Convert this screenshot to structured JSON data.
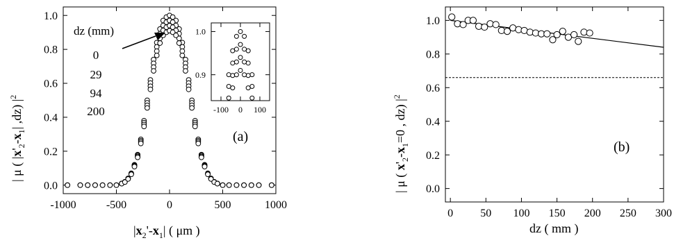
{
  "chart_data": [
    {
      "panel": "a",
      "type": "scatter",
      "panel_label": "(a)",
      "xlabel": "|x2'-x1|  (μm)",
      "ylabel": "|μ ( |x'2-x1|, dz) |²",
      "xlim": [
        -1000,
        1000
      ],
      "ylim": [
        -0.05,
        1.05
      ],
      "xticks": [
        -1000,
        -500,
        0,
        500,
        1000
      ],
      "yticks": [
        0.0,
        0.2,
        0.4,
        0.6,
        0.8,
        1.0
      ],
      "xtick_labels": [
        "-1000",
        "-500",
        "0",
        "500",
        "1000"
      ],
      "ytick_labels": [
        "0.0",
        "0.2",
        "0.4",
        "0.6",
        "0.8",
        "1.0"
      ],
      "marker": "open-circle",
      "legend": {
        "title": "dz (mm)",
        "entries": [
          "0",
          "29",
          "94",
          "200"
        ],
        "arrow": true
      },
      "series": [
        {
          "name": "0",
          "amplitude": 1.0
        },
        {
          "name": "29",
          "amplitude": 0.97
        },
        {
          "name": "94",
          "amplitude": 0.94
        },
        {
          "name": "200",
          "amplitude": 0.91
        }
      ],
      "x": [
        -960,
        -840,
        -770,
        -700,
        -630,
        -560,
        -500,
        -450,
        -420,
        -390,
        -360,
        -330,
        -300,
        -270,
        -240,
        -210,
        -180,
        -150,
        -120,
        -90,
        -60,
        -30,
        0,
        30,
        60,
        90,
        120,
        150,
        180,
        210,
        240,
        270,
        300,
        330,
        360,
        390,
        420,
        450,
        500,
        560,
        630,
        700,
        770,
        840,
        960
      ],
      "y_profile": [
        0.0,
        0.0,
        0.0,
        0.0,
        0.0,
        0.0,
        0.0,
        0.01,
        0.02,
        0.04,
        0.07,
        0.12,
        0.18,
        0.27,
        0.38,
        0.5,
        0.62,
        0.74,
        0.84,
        0.92,
        0.97,
        0.99,
        1.0,
        0.99,
        0.97,
        0.92,
        0.84,
        0.74,
        0.62,
        0.5,
        0.38,
        0.27,
        0.18,
        0.12,
        0.07,
        0.04,
        0.02,
        0.01,
        0.0,
        0.0,
        0.0,
        0.0,
        0.0,
        0.0,
        0.0
      ],
      "inset": {
        "xlim": [
          -150,
          150
        ],
        "ylim": [
          0.84,
          1.02
        ],
        "xticks": [
          -100,
          0,
          100
        ],
        "yticks": [
          0.9,
          1.0
        ],
        "xtick_labels": [
          "-100",
          "0",
          "100"
        ],
        "ytick_labels": [
          "0.9",
          "1.0"
        ],
        "x": [
          -120,
          -100,
          -80,
          -60,
          -40,
          -20,
          0,
          20,
          40,
          60,
          80,
          100,
          120
        ]
      }
    },
    {
      "panel": "b",
      "type": "scatter",
      "panel_label": "(b)",
      "xlabel": "dz  (mm)",
      "ylabel": "| μ ( x'2-x1=0 , dz) |²",
      "xlim": [
        -7,
        300
      ],
      "ylim": [
        -0.08,
        1.08
      ],
      "xticks": [
        0,
        50,
        100,
        150,
        200,
        250,
        300
      ],
      "yticks": [
        0.0,
        0.2,
        0.4,
        0.6,
        0.8,
        1.0
      ],
      "xtick_labels": [
        "0",
        "50",
        "100",
        "150",
        "200",
        "250",
        "300"
      ],
      "ytick_labels": [
        "0.0",
        "0.2",
        "0.4",
        "0.6",
        "0.8",
        "1.0"
      ],
      "marker": "open-circle",
      "x": [
        2,
        10,
        18,
        25,
        32,
        40,
        48,
        56,
        64,
        72,
        80,
        88,
        96,
        104,
        112,
        120,
        128,
        136,
        144,
        150,
        158,
        166,
        174,
        180,
        188,
        196
      ],
      "y": [
        1.02,
        0.98,
        0.975,
        1.0,
        1.0,
        0.965,
        0.96,
        0.98,
        0.975,
        0.94,
        0.935,
        0.955,
        0.945,
        0.94,
        0.93,
        0.925,
        0.92,
        0.92,
        0.885,
        0.915,
        0.935,
        0.9,
        0.915,
        0.875,
        0.93,
        0.925
      ],
      "fit_line": {
        "x": [
          0,
          300
        ],
        "y": [
          1.0,
          0.84
        ]
      },
      "dashed_line": {
        "y": 0.66
      }
    }
  ]
}
